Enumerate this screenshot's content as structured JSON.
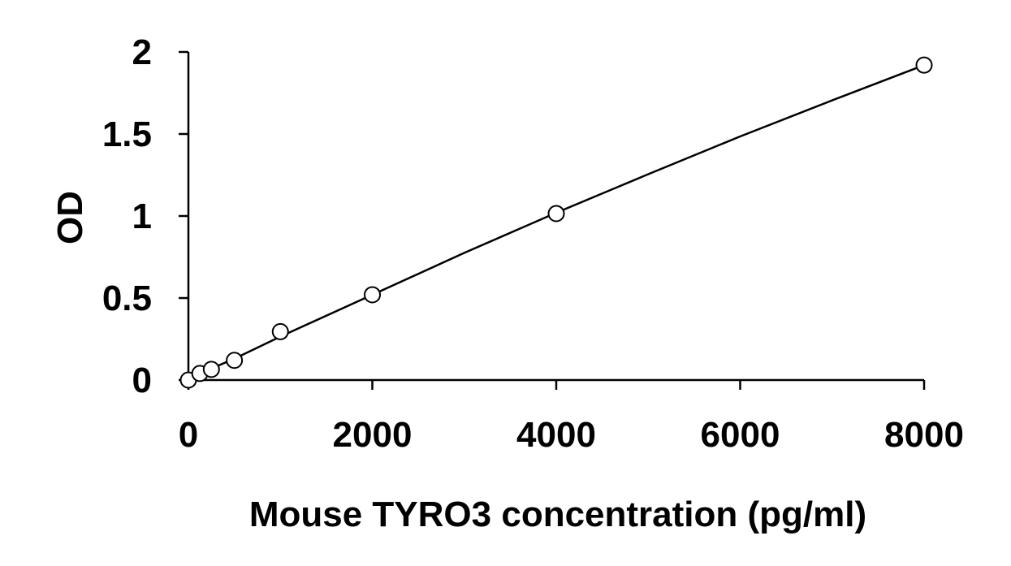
{
  "chart_data": {
    "type": "scatter",
    "title": "",
    "xlabel": "Mouse TYRO3 concentration (pg/ml)",
    "ylabel": "OD",
    "xlim": [
      0,
      8000
    ],
    "ylim": [
      0,
      2
    ],
    "x_ticks": [
      0,
      2000,
      4000,
      6000,
      8000
    ],
    "x_tick_labels": [
      "0",
      "2000",
      "4000",
      "6000",
      "8000"
    ],
    "y_ticks": [
      0,
      0.5,
      1,
      1.5,
      2
    ],
    "y_tick_labels": [
      "0",
      "0.5",
      "1",
      "1.5",
      "2"
    ],
    "grid": false,
    "legend": "none",
    "marker": "open-circle",
    "series": [
      {
        "x": [
          0,
          125,
          250,
          500,
          1000,
          2000,
          4000,
          8000
        ],
        "y": [
          0.0,
          0.04,
          0.065,
          0.12,
          0.295,
          0.52,
          1.015,
          1.92
        ]
      }
    ],
    "fit_curve": {
      "x": [
        0,
        500,
        1000,
        2000,
        3000,
        4000,
        5000,
        6000,
        7000,
        8000
      ],
      "y": [
        0.01,
        0.13,
        0.265,
        0.52,
        0.775,
        1.02,
        1.255,
        1.485,
        1.705,
        1.92
      ]
    },
    "colors": {
      "line": "#000000",
      "marker_stroke": "#000000",
      "marker_fill": "#ffffff",
      "background": "#ffffff"
    }
  }
}
